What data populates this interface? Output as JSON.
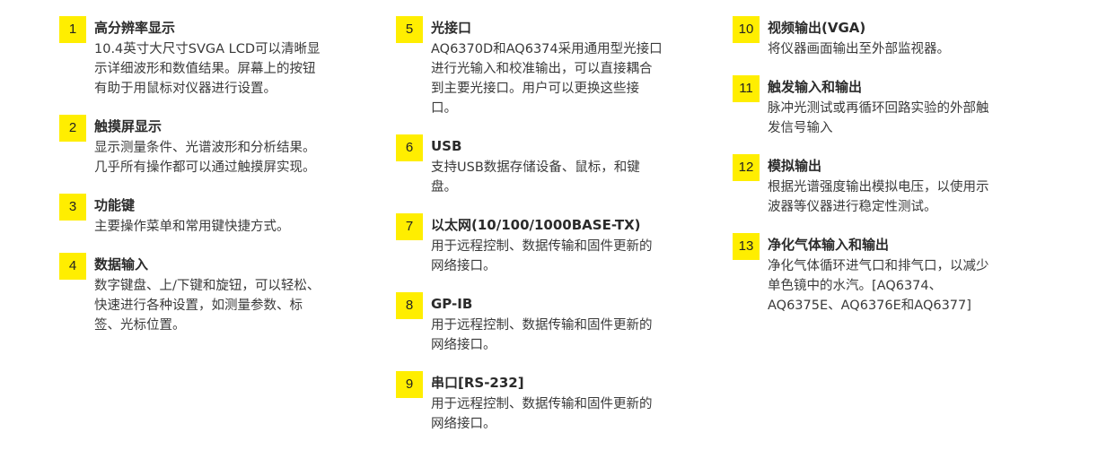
{
  "accent_color": "#ffee00",
  "columns": [
    {
      "items": [
        {
          "number": "1",
          "title": "高分辨率显示",
          "lines": [
            "10.4英寸大尺寸SVGA LCD可以清晰显",
            "示详细波形和数值结果。屏幕上的按钮",
            "有助于用鼠标对仪器进行设置。"
          ]
        },
        {
          "number": "2",
          "title": "触摸屏显示",
          "lines": [
            "显示测量条件、光谱波形和分析结果。",
            "几乎所有操作都可以通过触摸屏实现。"
          ]
        },
        {
          "number": "3",
          "title": "功能键",
          "lines": [
            "主要操作菜单和常用键快捷方式。"
          ]
        },
        {
          "number": "4",
          "title": "数据输入",
          "lines": [
            "数字键盘、上/下键和旋钮，可以轻松、",
            "快速进行各种设置，如测量参数、标",
            "签、光标位置。"
          ]
        }
      ]
    },
    {
      "items": [
        {
          "number": "5",
          "title": "光接口",
          "lines": [
            "AQ6370D和AQ6374采用通用型光接口",
            "进行光输入和校准输出，可以直接耦合",
            "到主要光接口。用户可以更换这些接",
            "口。"
          ]
        },
        {
          "number": "6",
          "title": "USB",
          "lines": [
            "支持USB数据存储设备、鼠标，和键",
            "盘。"
          ]
        },
        {
          "number": "7",
          "title": "以太网(10/100/1000BASE-TX)",
          "lines": [
            "用于远程控制、数据传输和固件更新的",
            "网络接口。"
          ]
        },
        {
          "number": "8",
          "title": "GP-IB",
          "lines": [
            "用于远程控制、数据传输和固件更新的",
            "网络接口。"
          ]
        },
        {
          "number": "9",
          "title": "串口[RS-232]",
          "lines": [
            "用于远程控制、数据传输和固件更新的",
            "网络接口。"
          ]
        }
      ]
    },
    {
      "items": [
        {
          "number": "10",
          "title": "视频输出(VGA)",
          "lines": [
            "将仪器画面输出至外部监视器。"
          ]
        },
        {
          "number": "11",
          "title": "触发输入和输出",
          "lines": [
            "脉冲光测试或再循环回路实验的外部触",
            "发信号输入"
          ]
        },
        {
          "number": "12",
          "title": "模拟输出",
          "lines": [
            "根据光谱强度输出模拟电压，以使用示",
            "波器等仪器进行稳定性测试。"
          ]
        },
        {
          "number": "13",
          "title": "净化气体输入和输出",
          "lines": [
            "净化气体循环进气口和排气口，以减少",
            "单色镜中的水汽。[AQ6374、",
            "AQ6375E、AQ6376E和AQ6377]"
          ]
        }
      ]
    }
  ]
}
